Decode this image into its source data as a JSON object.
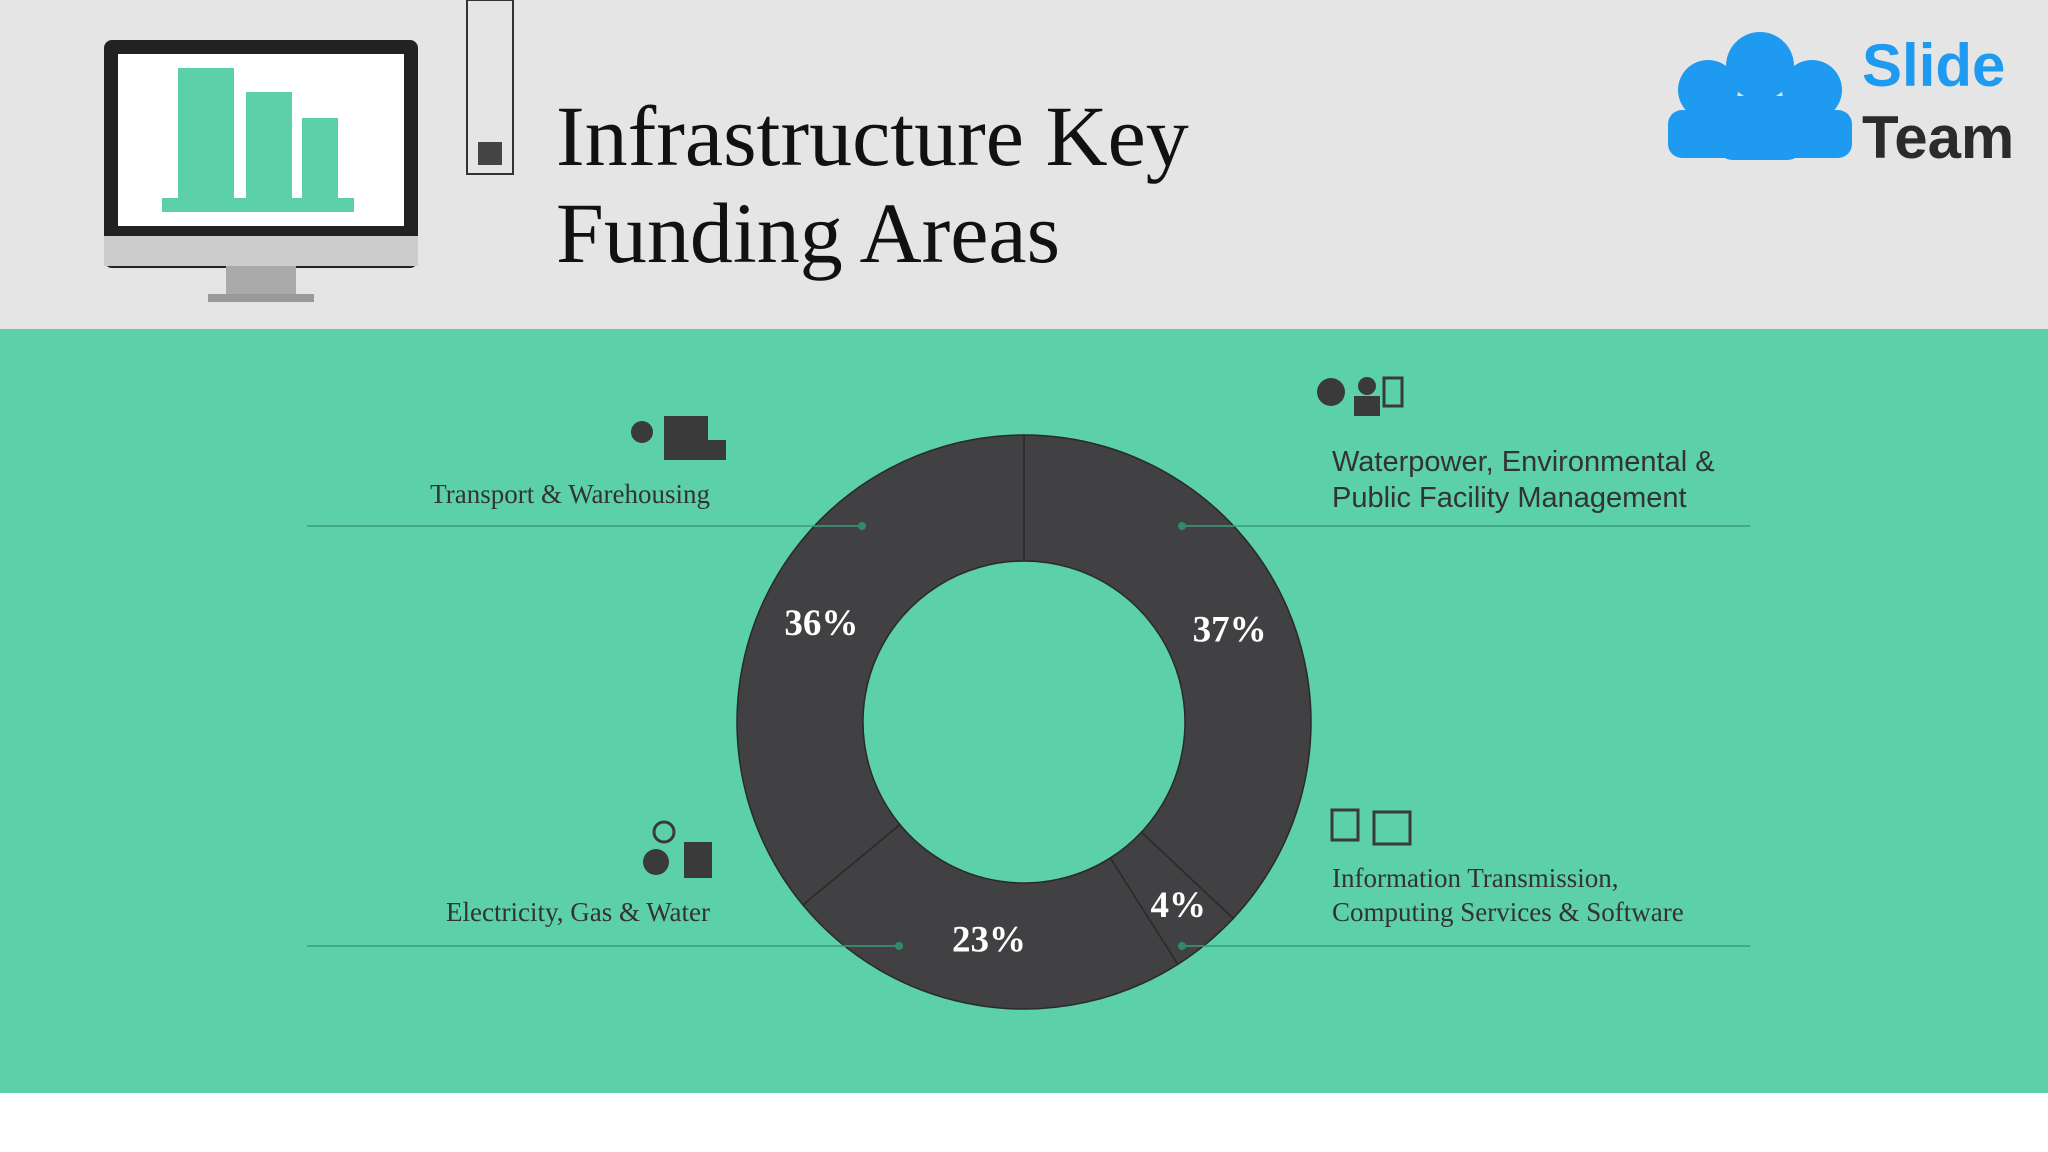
{
  "header": {
    "title": "Infrastructure Key Funding Areas",
    "logo": [
      "Slide",
      "Team"
    ]
  },
  "chart_data": {
    "type": "donut",
    "categories": [
      "Waterpower, Environmental & Public Facility Management",
      "Information Transmission, Computing Services & Software",
      "Electricity, Gas & Water",
      "Transport & Warehousing"
    ],
    "values": [
      37,
      4,
      23,
      36
    ],
    "value_labels": [
      "37%",
      "4%",
      "23%",
      "36%"
    ],
    "color": "#414042"
  }
}
